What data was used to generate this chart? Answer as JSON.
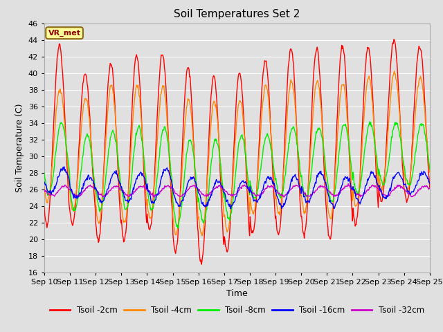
{
  "title": "Soil Temperatures Set 2",
  "xlabel": "Time",
  "ylabel": "Soil Temperature (C)",
  "ylim": [
    16,
    46
  ],
  "yticks": [
    16,
    18,
    20,
    22,
    24,
    26,
    28,
    30,
    32,
    34,
    36,
    38,
    40,
    42,
    44,
    46
  ],
  "xtick_labels": [
    "Sep 10",
    "Sep 11",
    "Sep 12",
    "Sep 13",
    "Sep 14",
    "Sep 15",
    "Sep 16",
    "Sep 17",
    "Sep 18",
    "Sep 19",
    "Sep 20",
    "Sep 21",
    "Sep 22",
    "Sep 23",
    "Sep 24",
    "Sep 25"
  ],
  "station_label": "VR_met",
  "background_color": "#e0e0e0",
  "plot_bg_color": "#e0e0e0",
  "grid_color": "white",
  "series": {
    "Tsoil -2cm": {
      "color": "#ff0000",
      "lw": 1.0
    },
    "Tsoil -4cm": {
      "color": "#ff8800",
      "lw": 1.0
    },
    "Tsoil -8cm": {
      "color": "#00ee00",
      "lw": 1.0
    },
    "Tsoil -16cm": {
      "color": "#0000ff",
      "lw": 1.0
    },
    "Tsoil -32cm": {
      "color": "#cc00cc",
      "lw": 1.0
    }
  },
  "n_days": 15,
  "pts_per_day": 48,
  "t2_peaks": [
    43.3,
    40.0,
    41.1,
    42.1,
    42.3,
    40.7,
    39.7,
    40.0,
    41.5,
    43.0,
    43.0,
    43.3,
    43.2,
    44.0,
    43.2
  ],
  "t2_troughs": [
    21.5,
    21.8,
    19.8,
    19.8,
    21.0,
    18.5,
    17.1,
    18.5,
    20.7,
    20.5,
    20.5,
    20.0,
    21.8,
    24.5,
    24.5
  ],
  "t4_peaks": [
    38.0,
    37.0,
    38.5,
    38.5,
    38.3,
    36.8,
    36.5,
    36.8,
    38.5,
    39.0,
    39.0,
    38.8,
    39.5,
    40.0,
    39.5
  ],
  "t4_troughs": [
    24.5,
    23.5,
    22.0,
    22.0,
    22.5,
    20.5,
    20.5,
    21.0,
    23.0,
    23.0,
    23.2,
    22.5,
    24.0,
    26.0,
    26.0
  ],
  "t8_peaks": [
    34.0,
    32.5,
    33.0,
    33.5,
    33.5,
    32.0,
    32.0,
    32.5,
    32.5,
    33.5,
    33.5,
    34.0,
    34.0,
    34.0,
    34.0
  ],
  "t8_troughs": [
    25.5,
    23.5,
    23.5,
    23.5,
    23.5,
    21.5,
    22.0,
    22.5,
    25.0,
    25.0,
    25.0,
    24.5,
    25.5,
    26.5,
    26.5
  ],
  "t16_peaks": [
    28.5,
    27.5,
    28.0,
    28.0,
    28.5,
    27.5,
    27.0,
    27.0,
    27.5,
    27.5,
    28.0,
    27.5,
    28.0,
    28.0,
    28.0
  ],
  "t16_troughs": [
    25.5,
    25.0,
    24.5,
    24.5,
    24.5,
    24.0,
    24.0,
    24.0,
    24.5,
    24.0,
    24.5,
    24.0,
    24.5,
    25.0,
    25.5
  ],
  "t32_mean": 25.8,
  "t32_amp": 0.6
}
